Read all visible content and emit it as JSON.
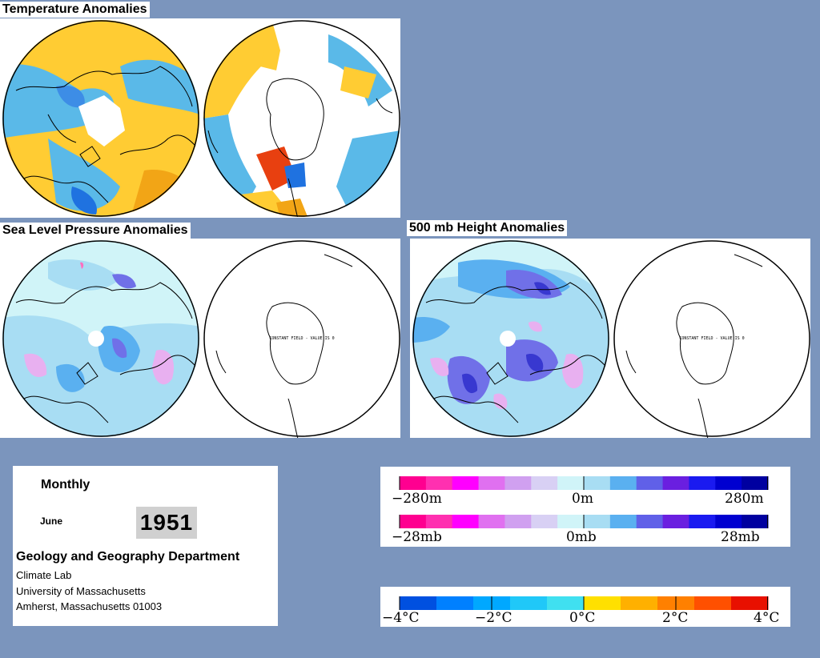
{
  "panels": {
    "temperature": {
      "title": "Temperature Anomalies"
    },
    "slp": {
      "title": "Sea Level Pressure Anomalies",
      "constant_field_note": "CONSTANT FIELD - VALUE IS 0"
    },
    "height500": {
      "title": "500 mb Height Anomalies",
      "constant_field_note": "CONSTANT FIELD - VALUE IS 0"
    }
  },
  "info": {
    "period": "Monthly",
    "month": "June",
    "year": "1951",
    "department": "Geology and Geography Department",
    "lines": [
      "Climate Lab",
      "University of Massachusetts",
      "Amherst, Massachusetts 01003"
    ]
  },
  "legends": {
    "height": {
      "labels": [
        "−280m",
        "0m",
        "280m"
      ]
    },
    "pressure": {
      "labels": [
        "−28mb",
        "0mb",
        "28mb"
      ]
    },
    "temperature": {
      "labels": [
        "−4°C",
        "−2°C",
        "0°C",
        "2°C",
        "4°C"
      ]
    }
  },
  "colors": {
    "background": "#7b95bd",
    "anomaly_scale": [
      "#ff0090",
      "#ff30b0",
      "#ff00ff",
      "#e070f0",
      "#d0a0f0",
      "#d8d0f4",
      "#d0f4f8",
      "#a8ddf3",
      "#5ab0f0",
      "#6060e8",
      "#6a1fe0",
      "#1a1af0",
      "#0000d0",
      "#0000a0"
    ],
    "temperature_scale": [
      "#0050e0",
      "#0080ff",
      "#00a8ff",
      "#20c8f8",
      "#40e0f0",
      "#ffe000",
      "#ffb000",
      "#ff8000",
      "#ff5000",
      "#e81000"
    ]
  }
}
